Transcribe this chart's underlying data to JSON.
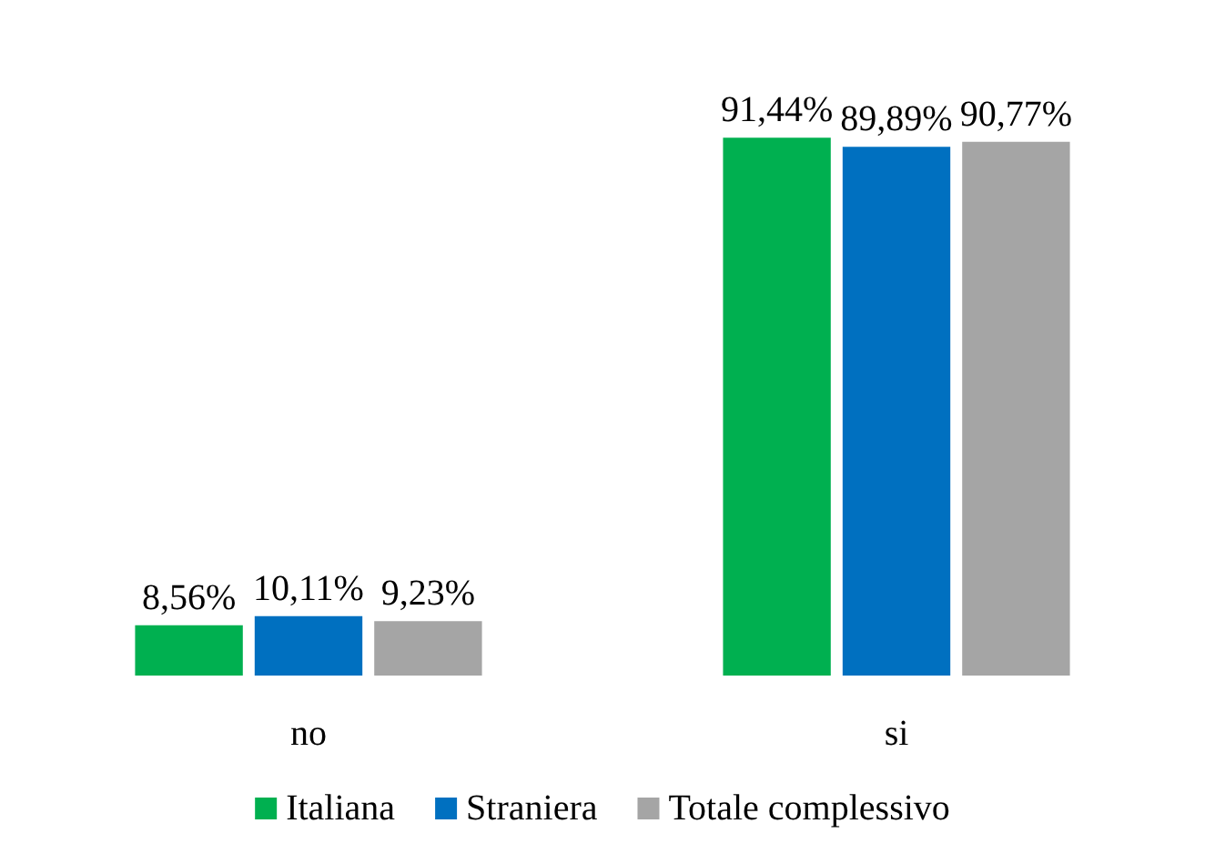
{
  "chart_data": {
    "type": "bar",
    "categories": [
      "no",
      "si"
    ],
    "series": [
      {
        "name": "Italiana",
        "color": "#00b050",
        "values": [
          8.56,
          91.44
        ],
        "value_labels": [
          "8,56%",
          "91,44%"
        ]
      },
      {
        "name": "Straniera",
        "color": "#0070c0",
        "values": [
          10.11,
          89.89
        ],
        "value_labels": [
          "10,11%",
          "89,89%"
        ]
      },
      {
        "name": "Totale complessivo",
        "color": "#a5a5a5",
        "values": [
          9.23,
          90.77
        ],
        "value_labels": [
          "9,23%",
          "90,77%"
        ]
      }
    ],
    "tick_labels": "x",
    "legend": "bottom"
  }
}
